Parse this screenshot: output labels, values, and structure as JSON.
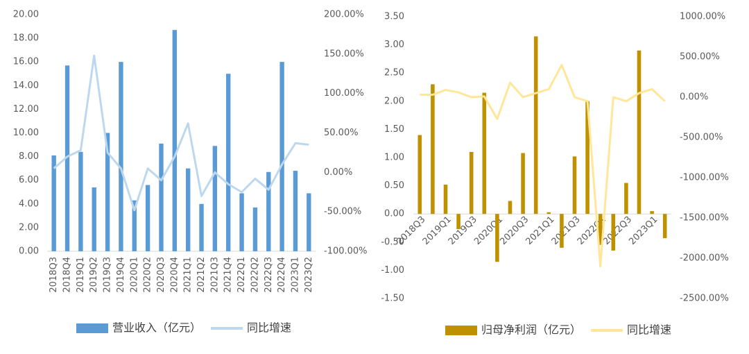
{
  "chart_data": [
    {
      "type": "bar",
      "categories": [
        "2018Q3",
        "2018Q4",
        "2019Q1",
        "2019Q2",
        "2019Q3",
        "2019Q4",
        "2020Q1",
        "2020Q2",
        "2020Q3",
        "2020Q4",
        "2021Q1",
        "2021Q2",
        "2021Q3",
        "2021Q4",
        "2022Q1",
        "2022Q2",
        "2022Q3",
        "2022Q4",
        "2023Q1",
        "2023Q2"
      ],
      "series": [
        {
          "name": "营业收入（亿元）",
          "color": "#5b9bd5",
          "values": [
            8.1,
            15.7,
            8.4,
            5.4,
            10.0,
            16.0,
            4.3,
            5.6,
            9.1,
            18.7,
            7.0,
            4.0,
            8.9,
            15.0,
            4.9,
            3.7,
            6.7,
            16.0,
            6.8,
            4.9
          ]
        },
        {
          "name": "同比增速",
          "color": "#bdd7ee",
          "axis": "y2",
          "values": [
            5,
            20,
            28,
            148,
            25,
            5,
            -48,
            5,
            -10,
            20,
            62,
            -30,
            0,
            -15,
            -25,
            -8,
            -22,
            10,
            37,
            35
          ]
        }
      ],
      "ylim": [
        0,
        20
      ],
      "yticks": [
        {
          "value": 0,
          "label": "0.00"
        },
        {
          "value": 2,
          "label": "2.00"
        },
        {
          "value": 4,
          "label": "4.00"
        },
        {
          "value": 6,
          "label": "6.00"
        },
        {
          "value": 8,
          "label": "8.00"
        },
        {
          "value": 10,
          "label": "10.00"
        },
        {
          "value": 12,
          "label": "12.00"
        },
        {
          "value": 14,
          "label": "14.00"
        },
        {
          "value": 16,
          "label": "16.00"
        },
        {
          "value": 18,
          "label": "18.00"
        },
        {
          "value": 20,
          "label": "20.00"
        }
      ],
      "y2lim": [
        -100,
        200
      ],
      "y2ticks": [
        {
          "value": -100,
          "label": "-100.00%"
        },
        {
          "value": -50,
          "label": "-50.00%"
        },
        {
          "value": 0,
          "label": "0.00%"
        },
        {
          "value": 50,
          "label": "50.00%"
        },
        {
          "value": 100,
          "label": "100.00%"
        },
        {
          "value": 150,
          "label": "150.00%"
        },
        {
          "value": 200,
          "label": "200.00%"
        }
      ],
      "legend": "bottom"
    },
    {
      "type": "bar",
      "categories": [
        "2018Q3",
        null,
        "2019Q1",
        null,
        "2019Q3",
        null,
        "2020Q1",
        null,
        "2020Q3",
        null,
        "2021Q1",
        null,
        "2021Q3",
        null,
        "2022Q1",
        null,
        "2022Q3",
        null,
        "2023Q1",
        null
      ],
      "series": [
        {
          "name": "归母净利润（亿元）",
          "color": "#bf9000",
          "values": [
            1.4,
            2.3,
            0.52,
            -0.27,
            1.1,
            2.15,
            -0.85,
            0.23,
            1.08,
            3.15,
            0.03,
            -0.6,
            1.02,
            2.0,
            -0.55,
            -0.65,
            0.55,
            2.9,
            0.05,
            -0.43
          ]
        },
        {
          "name": "同比增速",
          "color": "#ffe699",
          "axis": "y2",
          "values": [
            30,
            30,
            90,
            60,
            0,
            10,
            -270,
            180,
            0,
            50,
            100,
            400,
            0,
            -50,
            -2100,
            0,
            -50,
            50,
            100,
            -50
          ]
        }
      ],
      "ylim": [
        -1.5,
        3.5
      ],
      "yticks": [
        {
          "value": -1.5,
          "label": "-1.50"
        },
        {
          "value": -1,
          "label": "-1.00"
        },
        {
          "value": -0.5,
          "label": "-0.50"
        },
        {
          "value": 0,
          "label": "0.00"
        },
        {
          "value": 0.5,
          "label": "0.50"
        },
        {
          "value": 1,
          "label": "1.00"
        },
        {
          "value": 1.5,
          "label": "1.50"
        },
        {
          "value": 2,
          "label": "2.00"
        },
        {
          "value": 2.5,
          "label": "2.50"
        },
        {
          "value": 3,
          "label": "3.00"
        },
        {
          "value": 3.5,
          "label": "3.50"
        }
      ],
      "y2lim": [
        -2500,
        1000
      ],
      "y2ticks": [
        {
          "value": -2500,
          "label": "-2500.00%"
        },
        {
          "value": -2000,
          "label": "-2000.00%"
        },
        {
          "value": -1500,
          "label": "-1500.00%"
        },
        {
          "value": -1000,
          "label": "-1000.00%"
        },
        {
          "value": -500,
          "label": "-500.00%"
        },
        {
          "value": 0,
          "label": "0.00%"
        },
        {
          "value": 500,
          "label": "500.00%"
        },
        {
          "value": 1000,
          "label": "1000.00%"
        }
      ],
      "legend": "bottom"
    }
  ]
}
